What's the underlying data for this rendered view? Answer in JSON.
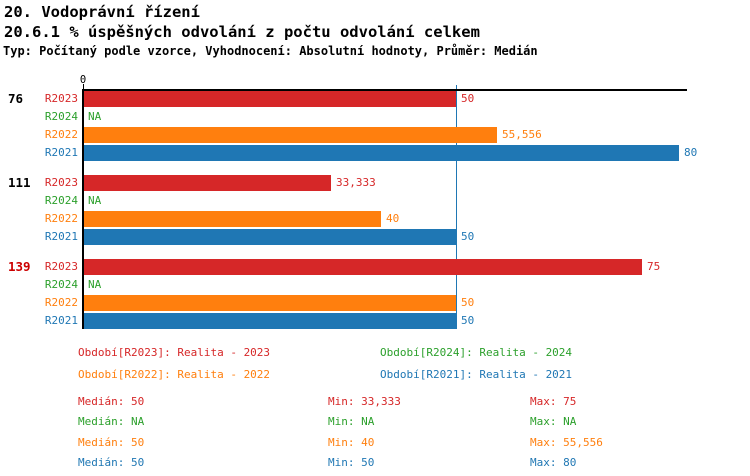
{
  "header": {
    "title": "20. Vodoprávní řízení",
    "subtitle": "20.6.1 % úspěšných odvolání z počtu odvolání celkem",
    "meta": "Typ: Počítaný podle vzorce, Vyhodnocení: Absolutní hodnoty, Průměr: Medián"
  },
  "palette": {
    "R2023": "#d62728",
    "R2024": "#2ca02c",
    "R2022": "#ff7f0e",
    "R2021": "#1f77b4",
    "axis": "#000000",
    "median_line": "#1f77b4",
    "group_label_highlight": "#cc0000"
  },
  "chart_data": {
    "type": "bar",
    "orientation": "horizontal",
    "title": "20.6.1 % úspěšných odvolání z počtu odvolání celkem",
    "x_axis": {
      "zero_label": "0",
      "min": 0,
      "max": 80.5,
      "grid": false
    },
    "median_line_value": 50,
    "series_order": [
      "R2023",
      "R2024",
      "R2022",
      "R2021"
    ],
    "groups": [
      {
        "label": "76",
        "label_color": "#000000",
        "bars": [
          {
            "series": "R2023",
            "value": 50,
            "display": "50"
          },
          {
            "series": "R2024",
            "value": null,
            "display": "NA"
          },
          {
            "series": "R2022",
            "value": 55.556,
            "display": "55,556"
          },
          {
            "series": "R2021",
            "value": 80,
            "display": "80"
          }
        ]
      },
      {
        "label": "111",
        "label_color": "#000000",
        "bars": [
          {
            "series": "R2023",
            "value": 33.333,
            "display": "33,333"
          },
          {
            "series": "R2024",
            "value": null,
            "display": "NA"
          },
          {
            "series": "R2022",
            "value": 40,
            "display": "40"
          },
          {
            "series": "R2021",
            "value": 50,
            "display": "50"
          }
        ]
      },
      {
        "label": "139",
        "label_color": "#cc0000",
        "bars": [
          {
            "series": "R2023",
            "value": 75,
            "display": "75"
          },
          {
            "series": "R2024",
            "value": null,
            "display": "NA"
          },
          {
            "series": "R2022",
            "value": 50,
            "display": "50"
          },
          {
            "series": "R2021",
            "value": 50,
            "display": "50"
          }
        ]
      }
    ]
  },
  "legend": {
    "items": [
      {
        "series": "R2023",
        "label": "Období[R2023]: Realita - 2023",
        "color": "#d62728"
      },
      {
        "series": "R2024",
        "label": "Období[R2024]: Realita - 2024",
        "color": "#2ca02c"
      },
      {
        "series": "R2022",
        "label": "Období[R2022]: Realita - 2022",
        "color": "#ff7f0e"
      },
      {
        "series": "R2021",
        "label": "Období[R2021]: Realita - 2021",
        "color": "#1f77b4"
      }
    ]
  },
  "stats": {
    "rows": [
      {
        "series": "R2023",
        "color": "#d62728",
        "median": "Medián: 50",
        "min": "Min: 33,333",
        "max": "Max: 75"
      },
      {
        "series": "R2024",
        "color": "#2ca02c",
        "median": "Medián: NA",
        "min": "Min: NA",
        "max": "Max: NA"
      },
      {
        "series": "R2022",
        "color": "#ff7f0e",
        "median": "Medián: 50",
        "min": "Min: 40",
        "max": "Max: 55,556"
      },
      {
        "series": "R2021",
        "color": "#1f77b4",
        "median": "Medián: 50",
        "min": "Min: 50",
        "max": "Max: 80"
      }
    ]
  }
}
